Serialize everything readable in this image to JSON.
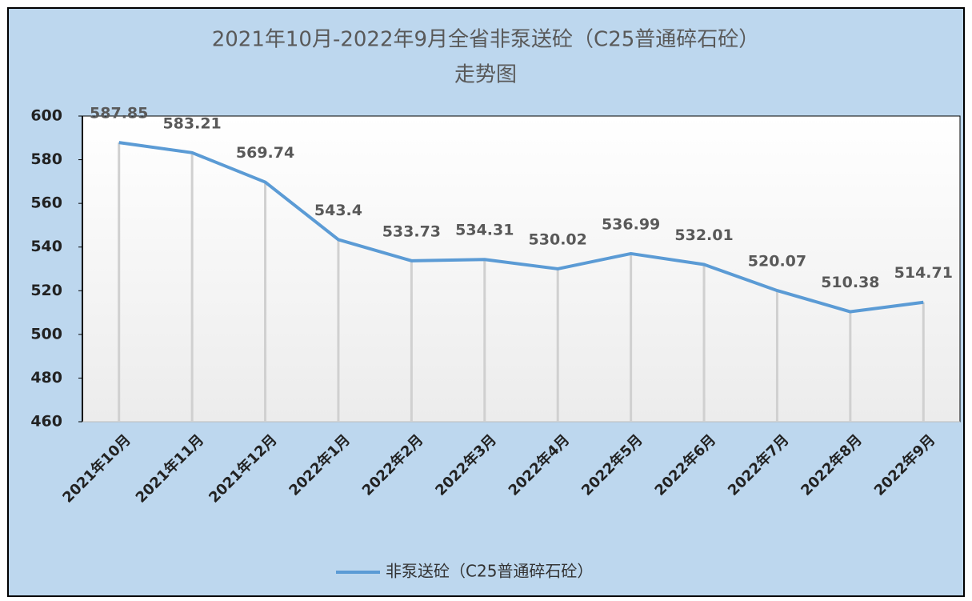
{
  "chart_data": {
    "type": "line",
    "title": [
      "2021年10月-2022年9月全省非泵送砼（C25普通碎石砼）",
      "走势图"
    ],
    "categories": [
      "2021年10月",
      "2021年11月",
      "2021年12月",
      "2022年1月",
      "2022年2月",
      "2022年3月",
      "2022年4月",
      "2022年5月",
      "2022年6月",
      "2022年7月",
      "2022年8月",
      "2022年9月"
    ],
    "series": [
      {
        "name": "非泵送砼（C25普通碎石砼）",
        "color": "#5b9bd5",
        "values": [
          587.85,
          583.21,
          569.74,
          543.4,
          533.73,
          534.31,
          530.02,
          536.99,
          532.01,
          520.07,
          510.38,
          514.71
        ]
      }
    ],
    "ylim": [
      460,
      600
    ],
    "yticks": [
      460,
      480,
      500,
      520,
      540,
      560,
      580,
      600
    ],
    "legend": "bottom",
    "drop_lines": true
  }
}
